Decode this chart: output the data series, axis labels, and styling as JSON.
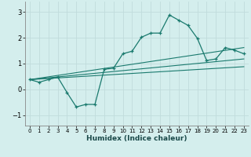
{
  "xlabel": "Humidex (Indice chaleur)",
  "bg_color": "#d4eeed",
  "grid_color": "#c0dcdc",
  "line_color": "#1a7a6e",
  "xlim": [
    -0.5,
    23.5
  ],
  "ylim": [
    -1.4,
    3.4
  ],
  "xticks": [
    0,
    1,
    2,
    3,
    4,
    5,
    6,
    7,
    8,
    9,
    10,
    11,
    12,
    13,
    14,
    15,
    16,
    17,
    18,
    19,
    20,
    21,
    22,
    23
  ],
  "yticks": [
    -1,
    0,
    1,
    2,
    3
  ],
  "series1_x": [
    0,
    1,
    2,
    3,
    4,
    5,
    6,
    7,
    8,
    9,
    10,
    11,
    12,
    13,
    14,
    15,
    16,
    17,
    18,
    19,
    20,
    21,
    22,
    23
  ],
  "series1_y": [
    0.38,
    0.28,
    0.38,
    0.48,
    -0.12,
    -0.68,
    -0.58,
    -0.58,
    0.78,
    0.82,
    1.38,
    1.48,
    2.02,
    2.18,
    2.18,
    2.88,
    2.68,
    2.48,
    1.98,
    1.12,
    1.18,
    1.62,
    1.52,
    1.38
  ],
  "series2_x": [
    0,
    23
  ],
  "series2_y": [
    0.38,
    1.62
  ],
  "series3_x": [
    0,
    23
  ],
  "series3_y": [
    0.38,
    1.18
  ],
  "series4_x": [
    0,
    23
  ],
  "series4_y": [
    0.38,
    0.88
  ]
}
